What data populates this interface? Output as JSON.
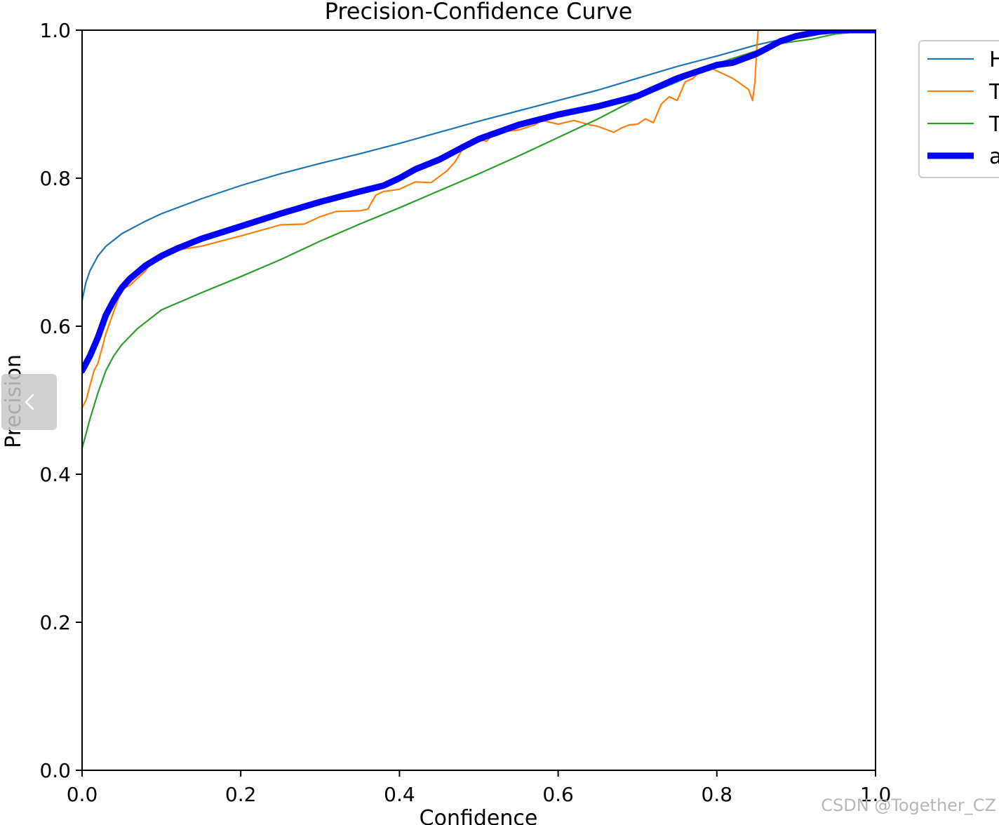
{
  "chart_data": {
    "type": "line",
    "title": "Precision-Confidence Curve",
    "xlabel": "Confidence",
    "ylabel": "Precision",
    "xlim": [
      0,
      1
    ],
    "ylim": [
      0,
      1
    ],
    "xticks": [
      "0.0",
      "0.2",
      "0.4",
      "0.6",
      "0.8",
      "1.0"
    ],
    "yticks": [
      "0.0",
      "0.2",
      "0.4",
      "0.6",
      "0.8",
      "1.0"
    ],
    "grid": false,
    "legend_position": "outside top-right (clipped)",
    "series": [
      {
        "name": "H",
        "color": "#1f77b4",
        "x": [
          0.0,
          0.005,
          0.01,
          0.02,
          0.03,
          0.05,
          0.08,
          0.1,
          0.15,
          0.2,
          0.25,
          0.3,
          0.35,
          0.4,
          0.45,
          0.5,
          0.55,
          0.6,
          0.65,
          0.7,
          0.75,
          0.8,
          0.85,
          0.9,
          0.95,
          1.0
        ],
        "y": [
          0.635,
          0.66,
          0.675,
          0.695,
          0.708,
          0.725,
          0.742,
          0.752,
          0.772,
          0.79,
          0.806,
          0.82,
          0.833,
          0.847,
          0.862,
          0.877,
          0.891,
          0.905,
          0.919,
          0.935,
          0.951,
          0.965,
          0.98,
          0.992,
          1.0,
          1.0
        ]
      },
      {
        "name": "T",
        "color": "#ff7f0e",
        "x": [
          0.0,
          0.005,
          0.01,
          0.015,
          0.02,
          0.025,
          0.03,
          0.04,
          0.05,
          0.06,
          0.07,
          0.08,
          0.09,
          0.1,
          0.11,
          0.12,
          0.15,
          0.2,
          0.25,
          0.28,
          0.3,
          0.32,
          0.35,
          0.36,
          0.37,
          0.38,
          0.4,
          0.42,
          0.44,
          0.46,
          0.47,
          0.48,
          0.5,
          0.51,
          0.52,
          0.55,
          0.57,
          0.58,
          0.6,
          0.62,
          0.64,
          0.65,
          0.67,
          0.68,
          0.69,
          0.7,
          0.71,
          0.72,
          0.73,
          0.74,
          0.75,
          0.76,
          0.77,
          0.78,
          0.79,
          0.8,
          0.82,
          0.84,
          0.845,
          0.848,
          0.85,
          0.852,
          0.855,
          0.86,
          0.87,
          0.88,
          0.9,
          0.93,
          0.95,
          1.0
        ],
        "y": [
          0.49,
          0.5,
          0.52,
          0.54,
          0.55,
          0.57,
          0.59,
          0.62,
          0.65,
          0.655,
          0.665,
          0.675,
          0.69,
          0.69,
          0.704,
          0.703,
          0.708,
          0.722,
          0.737,
          0.738,
          0.748,
          0.755,
          0.756,
          0.758,
          0.777,
          0.782,
          0.785,
          0.795,
          0.794,
          0.81,
          0.822,
          0.84,
          0.852,
          0.85,
          0.862,
          0.865,
          0.872,
          0.878,
          0.873,
          0.878,
          0.872,
          0.87,
          0.862,
          0.868,
          0.872,
          0.873,
          0.88,
          0.875,
          0.9,
          0.91,
          0.905,
          0.93,
          0.935,
          0.945,
          0.95,
          0.945,
          0.935,
          0.92,
          0.905,
          0.93,
          0.97,
          1.0,
          1.0,
          1.0,
          1.0,
          1.0,
          1.0,
          1.0,
          1.0,
          1.0
        ]
      },
      {
        "name": "T",
        "color": "#2ca02c",
        "x": [
          0.0,
          0.005,
          0.01,
          0.02,
          0.03,
          0.04,
          0.05,
          0.07,
          0.1,
          0.15,
          0.2,
          0.25,
          0.3,
          0.35,
          0.4,
          0.45,
          0.5,
          0.55,
          0.6,
          0.65,
          0.7,
          0.75,
          0.8,
          0.85,
          0.88,
          0.9,
          0.92,
          0.95,
          1.0
        ],
        "y": [
          0.435,
          0.455,
          0.475,
          0.51,
          0.54,
          0.56,
          0.575,
          0.597,
          0.622,
          0.645,
          0.667,
          0.69,
          0.715,
          0.738,
          0.76,
          0.783,
          0.806,
          0.83,
          0.855,
          0.88,
          0.908,
          0.93,
          0.955,
          0.972,
          0.982,
          0.985,
          0.988,
          0.995,
          1.0
        ]
      },
      {
        "name": "a",
        "color": "#0000ff",
        "x": [
          0.0,
          0.01,
          0.02,
          0.03,
          0.04,
          0.05,
          0.06,
          0.08,
          0.1,
          0.12,
          0.15,
          0.2,
          0.25,
          0.3,
          0.35,
          0.38,
          0.4,
          0.42,
          0.45,
          0.48,
          0.5,
          0.55,
          0.6,
          0.65,
          0.7,
          0.75,
          0.8,
          0.82,
          0.85,
          0.88,
          0.9,
          0.93,
          0.95,
          1.0
        ],
        "y": [
          0.54,
          0.56,
          0.585,
          0.615,
          0.635,
          0.652,
          0.664,
          0.682,
          0.695,
          0.705,
          0.718,
          0.735,
          0.752,
          0.768,
          0.782,
          0.79,
          0.8,
          0.812,
          0.825,
          0.842,
          0.853,
          0.872,
          0.886,
          0.897,
          0.911,
          0.935,
          0.953,
          0.956,
          0.968,
          0.985,
          0.992,
          0.998,
          1.0,
          1.0
        ]
      }
    ]
  },
  "navigation": {
    "back_icon": "chevron-left-icon"
  },
  "watermark": {
    "text": "CSDN @Together_CZ"
  }
}
